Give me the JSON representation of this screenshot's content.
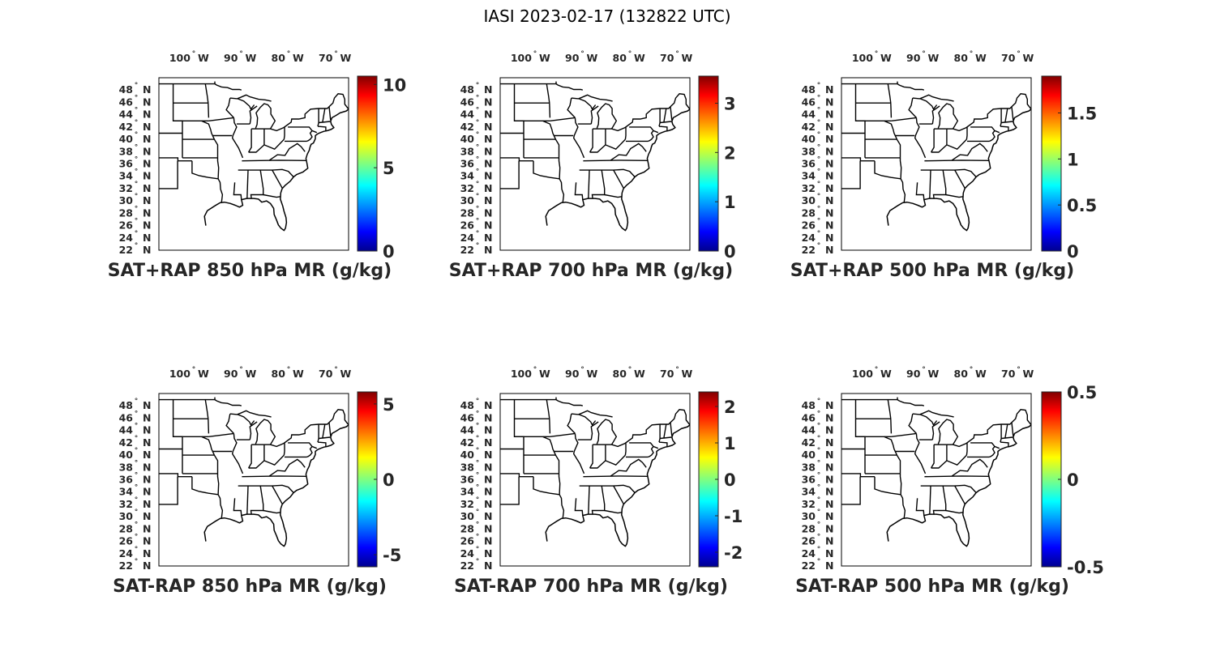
{
  "figure": {
    "title": "IASI 2023-02-17 (132822 UTC)"
  },
  "lon_ticks": [
    {
      "value": -100,
      "label": "100",
      "hemi": "W"
    },
    {
      "value": -90,
      "label": "90",
      "hemi": "W"
    },
    {
      "value": -80,
      "label": "80",
      "hemi": "W"
    },
    {
      "value": -70,
      "label": "70",
      "hemi": "W"
    }
  ],
  "lat_ticks": [
    {
      "value": 48,
      "label": "48",
      "hemi": "N"
    },
    {
      "value": 46,
      "label": "46",
      "hemi": "N"
    },
    {
      "value": 44,
      "label": "44",
      "hemi": "N"
    },
    {
      "value": 42,
      "label": "42",
      "hemi": "N"
    },
    {
      "value": 40,
      "label": "40",
      "hemi": "N"
    },
    {
      "value": 38,
      "label": "38",
      "hemi": "N"
    },
    {
      "value": 36,
      "label": "36",
      "hemi": "N"
    },
    {
      "value": 34,
      "label": "34",
      "hemi": "N"
    },
    {
      "value": 32,
      "label": "32",
      "hemi": "N"
    },
    {
      "value": 30,
      "label": "30",
      "hemi": "N"
    },
    {
      "value": 28,
      "label": "28",
      "hemi": "N"
    },
    {
      "value": 26,
      "label": "26",
      "hemi": "N"
    },
    {
      "value": 24,
      "label": "24",
      "hemi": "N"
    },
    {
      "value": 22,
      "label": "22",
      "hemi": "N"
    }
  ],
  "degree_symbol": "°",
  "map_extent": {
    "lon": [
      -107,
      -67
    ],
    "lat": [
      22,
      50
    ]
  },
  "colormap": "jet",
  "colormap_stops": [
    "#00008f",
    "#0000ff",
    "#00ffff",
    "#ffff00",
    "#ff0000",
    "#800000"
  ],
  "panels": [
    {
      "title": "SAT+RAP 850 hPa MR (g/kg)",
      "cbar": {
        "min": 0,
        "max": 10.5,
        "ticks": [
          {
            "v": 0,
            "t": "0"
          },
          {
            "v": 5,
            "t": "5"
          },
          {
            "v": 10,
            "t": "10"
          }
        ]
      }
    },
    {
      "title": "SAT+RAP 700 hPa MR (g/kg)",
      "cbar": {
        "min": 0,
        "max": 3.55,
        "ticks": [
          {
            "v": 0,
            "t": "0"
          },
          {
            "v": 1,
            "t": "1"
          },
          {
            "v": 2,
            "t": "2"
          },
          {
            "v": 3,
            "t": "3"
          }
        ]
      }
    },
    {
      "title": "SAT+RAP 500 hPa MR (g/kg)",
      "cbar": {
        "min": 0,
        "max": 1.9,
        "ticks": [
          {
            "v": 0,
            "t": "0"
          },
          {
            "v": 0.5,
            "t": "0.5"
          },
          {
            "v": 1,
            "t": "1"
          },
          {
            "v": 1.5,
            "t": "1.5"
          }
        ]
      }
    },
    {
      "title": "SAT-RAP 850 hPa MR (g/kg)",
      "cbar": {
        "min": -5.8,
        "max": 5.8,
        "ticks": [
          {
            "v": -5,
            "t": "-5"
          },
          {
            "v": 0,
            "t": "0"
          },
          {
            "v": 5,
            "t": "5"
          }
        ]
      }
    },
    {
      "title": "SAT-RAP 700 hPa MR (g/kg)",
      "cbar": {
        "min": -2.4,
        "max": 2.4,
        "ticks": [
          {
            "v": -2,
            "t": "-2"
          },
          {
            "v": -1,
            "t": "-1"
          },
          {
            "v": 0,
            "t": "0"
          },
          {
            "v": 1,
            "t": "1"
          },
          {
            "v": 2,
            "t": "2"
          }
        ]
      }
    },
    {
      "title": "SAT-RAP 500 hPa MR (g/kg)",
      "cbar": {
        "min": -0.5,
        "max": 0.5,
        "ticks": [
          {
            "v": -0.5,
            "t": "-0.5"
          },
          {
            "v": 0,
            "t": "0"
          },
          {
            "v": 0.5,
            "t": "0.5"
          }
        ]
      }
    }
  ],
  "map_features": {
    "coastline": [
      [
        -97.1,
        26
      ],
      [
        -97.4,
        27.5
      ],
      [
        -96.8,
        28.4
      ],
      [
        -95.2,
        29.2
      ],
      [
        -94.1,
        29.7
      ],
      [
        -93.2,
        29.8
      ],
      [
        -92.0,
        29.6
      ],
      [
        -90.9,
        29.3
      ],
      [
        -90.0,
        29.0
      ],
      [
        -89.3,
        29.3
      ],
      [
        -89.6,
        30.2
      ],
      [
        -88.5,
        30.4
      ],
      [
        -87.8,
        30.4
      ],
      [
        -87.0,
        30.4
      ],
      [
        -86.0,
        30.3
      ],
      [
        -85.3,
        29.8
      ],
      [
        -84.3,
        30.0
      ],
      [
        -83.5,
        29.6
      ],
      [
        -82.8,
        28.8
      ],
      [
        -82.7,
        27.8
      ],
      [
        -82.2,
        26.9
      ],
      [
        -81.8,
        26.1
      ],
      [
        -81.3,
        25.6
      ],
      [
        -80.6,
        25.2
      ],
      [
        -80.3,
        25.6
      ],
      [
        -80.1,
        26.5
      ],
      [
        -80.2,
        27.3
      ],
      [
        -80.6,
        28.3
      ],
      [
        -80.9,
        29.2
      ],
      [
        -81.4,
        30.3
      ],
      [
        -81.3,
        31.3
      ],
      [
        -81.0,
        32.0
      ],
      [
        -80.4,
        32.5
      ],
      [
        -79.3,
        33.2
      ],
      [
        -78.6,
        33.9
      ],
      [
        -77.9,
        34.3
      ],
      [
        -76.6,
        34.7
      ],
      [
        -75.6,
        35.3
      ],
      [
        -75.8,
        36.2
      ],
      [
        -76.0,
        36.9
      ],
      [
        -75.7,
        37.6
      ],
      [
        -75.3,
        38.2
      ],
      [
        -75.1,
        38.8
      ],
      [
        -74.9,
        39.2
      ],
      [
        -74.4,
        39.4
      ],
      [
        -74.0,
        40.1
      ],
      [
        -74.0,
        40.6
      ],
      [
        -73.5,
        40.9
      ],
      [
        -72.9,
        41.1
      ],
      [
        -72.2,
        41.3
      ],
      [
        -71.5,
        41.4
      ],
      [
        -70.7,
        41.6
      ],
      [
        -70.1,
        41.9
      ],
      [
        -70.6,
        42.4
      ],
      [
        -70.8,
        42.9
      ],
      [
        -70.5,
        43.5
      ],
      [
        -69.6,
        43.9
      ],
      [
        -68.8,
        44.3
      ],
      [
        -67.5,
        44.6
      ],
      [
        -67.0,
        44.9
      ]
    ],
    "state_lines": [
      [
        [
          -107,
          41
        ],
        [
          -102.05,
          41
        ]
      ],
      [
        [
          -107,
          37
        ],
        [
          -103,
          37
        ],
        [
          -103,
          36.5
        ],
        [
          -100,
          36.5
        ]
      ],
      [
        [
          -107,
          32
        ],
        [
          -103.05,
          32
        ],
        [
          -103.05,
          36.5
        ]
      ],
      [
        [
          -100,
          36.5
        ],
        [
          -100,
          34.5
        ],
        [
          -98.5,
          34.1
        ],
        [
          -96.5,
          33.8
        ],
        [
          -94.5,
          33.6
        ]
      ],
      [
        [
          -94.5,
          33.6
        ],
        [
          -94.1,
          33.0
        ],
        [
          -94.0,
          31.9
        ],
        [
          -93.6,
          31.0
        ],
        [
          -93.8,
          29.7
        ]
      ],
      [
        [
          -102.05,
          37
        ],
        [
          -102.05,
          41
        ],
        [
          -102.05,
          43
        ],
        [
          -104,
          43
        ],
        [
          -104,
          45
        ],
        [
          -104,
          49
        ]
      ],
      [
        [
          -102.05,
          40
        ],
        [
          -95.3,
          40
        ]
      ],
      [
        [
          -102.05,
          37
        ],
        [
          -94.6,
          37
        ]
      ],
      [
        [
          -94.6,
          37
        ],
        [
          -94.6,
          36.5
        ],
        [
          -94.4,
          35.4
        ],
        [
          -94.5,
          33.6
        ]
      ],
      [
        [
          -104,
          45.9
        ],
        [
          -96.6,
          45.9
        ]
      ],
      [
        [
          -104,
          43
        ],
        [
          -96.5,
          43
        ]
      ],
      [
        [
          -98,
          43
        ],
        [
          -96.5,
          42.5
        ],
        [
          -96.1,
          41.6
        ],
        [
          -95.9,
          41.0
        ],
        [
          -95.3,
          40
        ]
      ],
      [
        [
          -95.3,
          40
        ],
        [
          -94.6,
          39.1
        ],
        [
          -94.6,
          37
        ]
      ],
      [
        [
          -96.6,
          45.9
        ],
        [
          -96.8,
          47.0
        ],
        [
          -97.2,
          49
        ]
      ],
      [
        [
          -96.5,
          43
        ],
        [
          -91.2,
          43.5
        ]
      ],
      [
        [
          -96.5,
          43.5
        ],
        [
          -96.6,
          45.9
        ]
      ],
      [
        [
          -92.0,
          46.7
        ],
        [
          -92.3,
          45.5
        ],
        [
          -92.8,
          44.8
        ],
        [
          -91.2,
          43.5
        ]
      ],
      [
        [
          -91.2,
          43.5
        ],
        [
          -91.1,
          42.7
        ],
        [
          -90.6,
          42.0
        ],
        [
          -91.4,
          40.6
        ],
        [
          -91.5,
          40.2
        ],
        [
          -90.2,
          38.6
        ],
        [
          -89.3,
          37.0
        ]
      ],
      [
        [
          -95.7,
          40.6
        ],
        [
          -91.6,
          40.6
        ]
      ],
      [
        [
          -90.6,
          42.5
        ],
        [
          -87.8,
          42.5
        ]
      ],
      [
        [
          -87.5,
          41.7
        ],
        [
          -87.5,
          39.5
        ],
        [
          -87.5,
          38.7
        ],
        [
          -88.1,
          37.9
        ]
      ],
      [
        [
          -84.8,
          41.7
        ],
        [
          -84.8,
          39.1
        ]
      ],
      [
        [
          -87.5,
          41.7
        ],
        [
          -84.8,
          41.7
        ]
      ],
      [
        [
          -84.8,
          41.7
        ],
        [
          -83.5,
          41.7
        ]
      ],
      [
        [
          -80.5,
          42
        ],
        [
          -80.5,
          40.6
        ],
        [
          -80.6,
          40.0
        ]
      ],
      [
        [
          -88.1,
          37.9
        ],
        [
          -86.5,
          37.9
        ],
        [
          -84.8,
          39.1
        ],
        [
          -82.6,
          38.4
        ],
        [
          -80.6,
          40.0
        ]
      ],
      [
        [
          -89.5,
          36.5
        ],
        [
          -81.7,
          36.6
        ],
        [
          -75.9,
          36.55
        ]
      ],
      [
        [
          -90.3,
          35.0
        ],
        [
          -84.3,
          35.0
        ],
        [
          -83.1,
          35.0
        ],
        [
          -81.0,
          35.1
        ],
        [
          -79.7,
          34.8
        ],
        [
          -78.6,
          33.9
        ]
      ],
      [
        [
          -91.0,
          33.0
        ],
        [
          -91.2,
          31.0
        ],
        [
          -89.7,
          31.0
        ],
        [
          -89.6,
          30.2
        ]
      ],
      [
        [
          -88.2,
          35.0
        ],
        [
          -88.4,
          30.4
        ]
      ],
      [
        [
          -85.6,
          35.0
        ],
        [
          -85.0,
          32.0
        ],
        [
          -85.0,
          31.0
        ],
        [
          -87.6,
          31.0
        ],
        [
          -87.5,
          30.4
        ]
      ],
      [
        [
          -85.0,
          31.0
        ],
        [
          -82.2,
          30.6
        ],
        [
          -81.4,
          30.7
        ]
      ],
      [
        [
          -83.1,
          35.0
        ],
        [
          -81.0,
          32.1
        ]
      ],
      [
        [
          -83.7,
          36.6
        ],
        [
          -82.0,
          37.5
        ],
        [
          -80.4,
          37.4
        ],
        [
          -79.5,
          38.5
        ],
        [
          -77.8,
          39.3
        ],
        [
          -77.0,
          38.8
        ],
        [
          -76.2,
          38.0
        ]
      ],
      [
        [
          -80.5,
          39.7
        ],
        [
          -75.8,
          39.7
        ]
      ],
      [
        [
          -75.8,
          39.7
        ],
        [
          -75.5,
          39.8
        ],
        [
          -75.1,
          40.0
        ],
        [
          -74.7,
          40.4
        ],
        [
          -75.1,
          41.0
        ],
        [
          -74.7,
          41.4
        ]
      ],
      [
        [
          -79.8,
          42.0
        ],
        [
          -75.3,
          42.0
        ],
        [
          -74.7,
          41.4
        ],
        [
          -73.7,
          41.1
        ]
      ],
      [
        [
          -73.5,
          42.1
        ],
        [
          -73.3,
          42.7
        ],
        [
          -73.3,
          45.0
        ]
      ],
      [
        [
          -73.5,
          42.1
        ],
        [
          -71.8,
          42.0
        ],
        [
          -71.8,
          41.3
        ]
      ],
      [
        [
          -73.3,
          42.7
        ],
        [
          -70.9,
          42.9
        ]
      ],
      [
        [
          -72.5,
          42.7
        ],
        [
          -72.0,
          45.0
        ]
      ],
      [
        [
          -71.1,
          45.3
        ],
        [
          -70.8,
          43.1
        ]
      ],
      [
        [
          -83.3,
          46.2
        ],
        [
          -84.5,
          46.4
        ],
        [
          -86.0,
          46.5
        ],
        [
          -87.8,
          46.9
        ],
        [
          -88.6,
          47.2
        ],
        [
          -89.8,
          46.8
        ],
        [
          -90.5,
          46.6
        ],
        [
          -92.0,
          46.7
        ]
      ],
      [
        [
          -90.4,
          46.6
        ],
        [
          -89.1,
          46.2
        ],
        [
          -87.9,
          45.4
        ],
        [
          -87.6,
          44.9
        ],
        [
          -86.9,
          45.6
        ]
      ],
      [
        [
          -87.8,
          42.5
        ],
        [
          -87.6,
          43.5
        ],
        [
          -87.8,
          44.6
        ],
        [
          -86.3,
          45.4
        ]
      ],
      [
        [
          -86.6,
          41.8
        ],
        [
          -86.3,
          42.4
        ],
        [
          -86.2,
          43.5
        ],
        [
          -86.5,
          44.3
        ],
        [
          -85.6,
          45.2
        ],
        [
          -84.8,
          45.8
        ],
        [
          -84.0,
          45.6
        ],
        [
          -83.4,
          45.0
        ],
        [
          -83.4,
          44.1
        ],
        [
          -82.5,
          43.0
        ],
        [
          -83.1,
          42.2
        ],
        [
          -83.5,
          41.7
        ]
      ],
      [
        [
          -83.5,
          41.7
        ],
        [
          -82.2,
          41.4
        ],
        [
          -80.7,
          41.9
        ],
        [
          -79.1,
          42.8
        ],
        [
          -79.0,
          43.3
        ],
        [
          -77.5,
          43.3
        ],
        [
          -76.2,
          43.5
        ],
        [
          -76.2,
          44.1
        ],
        [
          -75.0,
          44.9
        ],
        [
          -73.3,
          45.0
        ],
        [
          -71.5,
          45.0
        ],
        [
          -71.1,
          45.3
        ],
        [
          -70.3,
          45.9
        ],
        [
          -70.0,
          46.7
        ],
        [
          -69.2,
          47.4
        ],
        [
          -68.2,
          47.3
        ],
        [
          -67.8,
          46.5
        ],
        [
          -67.8,
          45.7
        ],
        [
          -67.0,
          44.9
        ]
      ],
      [
        [
          -107,
          49
        ],
        [
          -97.2,
          49
        ],
        [
          -95.2,
          49
        ],
        [
          -95.2,
          49.4
        ]
      ],
      [
        [
          -95.2,
          49
        ],
        [
          -94.8,
          48.8
        ],
        [
          -93.8,
          48.5
        ],
        [
          -92.5,
          48.4
        ],
        [
          -91.5,
          48.1
        ],
        [
          -90.0,
          48.1
        ],
        [
          -89.6,
          48.0
        ]
      ]
    ]
  }
}
